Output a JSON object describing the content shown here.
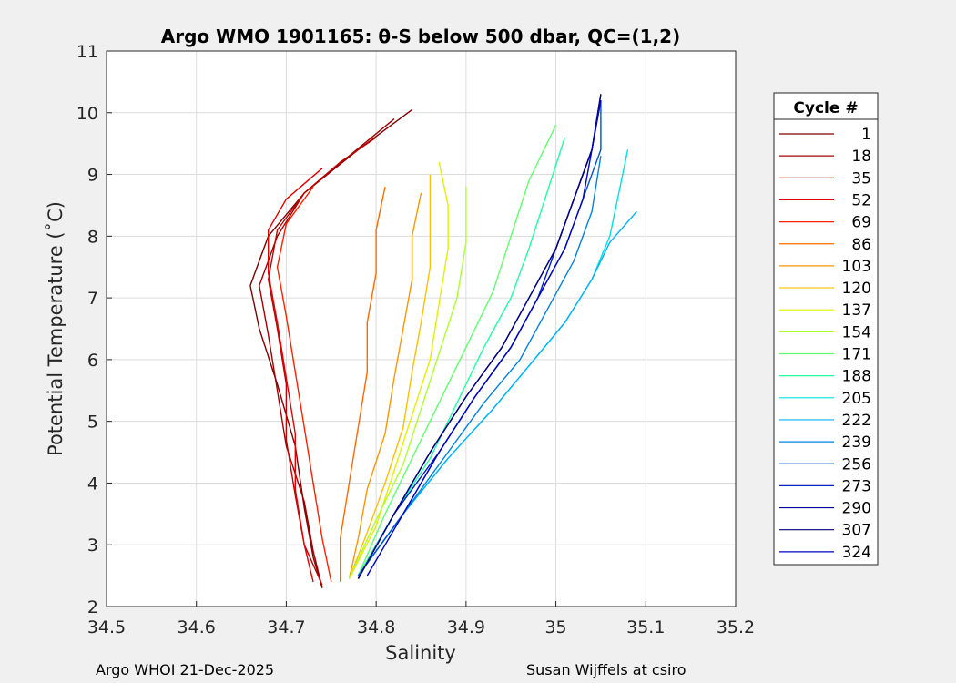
{
  "chart_data": {
    "type": "line",
    "title": "Argo WMO 1901165: θ-S below 500 dbar,  QC=(1,2)",
    "xlabel": "Salinity",
    "ylabel": "Potential Temperature (˚C)",
    "xlim": [
      34.5,
      35.2
    ],
    "ylim": [
      2,
      11
    ],
    "xticks": [
      "34.5",
      "34.6",
      "34.7",
      "34.8",
      "34.9",
      "35",
      "35.1",
      "35.2"
    ],
    "yticks": [
      "2",
      "3",
      "4",
      "5",
      "6",
      "7",
      "8",
      "9",
      "10",
      "11"
    ],
    "grid": true,
    "legend_title": "Cycle #",
    "legend_position": "outside-right",
    "series": [
      {
        "name": "1",
        "color": "#7f0000",
        "x": [
          34.74,
          34.73,
          34.72,
          34.71,
          34.69,
          34.67,
          34.66,
          34.68,
          34.72,
          34.78,
          34.84
        ],
        "y": [
          2.3,
          2.8,
          3.6,
          4.6,
          5.6,
          6.5,
          7.2,
          8.0,
          8.7,
          9.4,
          10.05
        ]
      },
      {
        "name": "18",
        "color": "#a00000",
        "x": [
          34.74,
          34.73,
          34.72,
          34.7,
          34.69,
          34.68,
          34.67,
          34.69,
          34.72,
          34.77,
          34.82
        ],
        "y": [
          2.3,
          2.9,
          3.7,
          4.6,
          5.5,
          6.4,
          7.2,
          8.0,
          8.7,
          9.3,
          9.9
        ]
      },
      {
        "name": "35",
        "color": "#c00000",
        "x": [
          34.74,
          34.72,
          34.71,
          34.7,
          34.7,
          34.69,
          34.68,
          34.69,
          34.72,
          34.76,
          34.8
        ],
        "y": [
          2.35,
          3.0,
          3.8,
          4.7,
          5.6,
          6.5,
          7.3,
          8.1,
          8.7,
          9.2,
          9.6
        ]
      },
      {
        "name": "52",
        "color": "#e00000",
        "x": [
          34.73,
          34.72,
          34.71,
          34.71,
          34.7,
          34.69,
          34.68,
          34.68,
          34.7,
          34.74
        ],
        "y": [
          2.4,
          3.0,
          3.9,
          4.8,
          5.7,
          6.6,
          7.4,
          8.1,
          8.6,
          9.1
        ]
      },
      {
        "name": "69",
        "color": "#ff2000",
        "x": [
          34.75,
          34.74,
          34.73,
          34.72,
          34.71,
          34.7,
          34.69,
          34.7,
          34.73
        ],
        "y": [
          2.4,
          3.1,
          4.0,
          4.9,
          5.8,
          6.7,
          7.5,
          8.2,
          8.8
        ]
      },
      {
        "name": "86",
        "color": "#ff6a00",
        "x": [
          34.76,
          34.76,
          34.77,
          34.78,
          34.79,
          34.79,
          34.8,
          34.8,
          34.81
        ],
        "y": [
          2.4,
          3.1,
          4.0,
          4.9,
          5.8,
          6.6,
          7.4,
          8.1,
          8.8
        ]
      },
      {
        "name": "103",
        "color": "#ff9500",
        "x": [
          34.77,
          34.78,
          34.79,
          34.81,
          34.82,
          34.83,
          34.84,
          34.84,
          34.85
        ],
        "y": [
          2.45,
          3.1,
          3.9,
          4.8,
          5.7,
          6.5,
          7.3,
          8.0,
          8.7
        ]
      },
      {
        "name": "120",
        "color": "#ffc000",
        "x": [
          34.77,
          34.79,
          34.81,
          34.83,
          34.84,
          34.85,
          34.86,
          34.86,
          34.86
        ],
        "y": [
          2.45,
          3.2,
          4.0,
          4.9,
          5.8,
          6.6,
          7.5,
          8.3,
          9.0
        ]
      },
      {
        "name": "137",
        "color": "#e5f000",
        "x": [
          34.77,
          34.8,
          34.82,
          34.84,
          34.86,
          34.87,
          34.88,
          34.88,
          34.87
        ],
        "y": [
          2.45,
          3.3,
          4.2,
          5.1,
          6.0,
          6.9,
          7.8,
          8.5,
          9.2
        ]
      },
      {
        "name": "154",
        "color": "#b0ff30",
        "x": [
          34.77,
          34.8,
          34.83,
          34.85,
          34.87,
          34.89,
          34.9,
          34.9
        ],
        "y": [
          2.45,
          3.4,
          4.3,
          5.2,
          6.1,
          7.0,
          7.9,
          8.8
        ]
      },
      {
        "name": "171",
        "color": "#60ff70",
        "x": [
          34.78,
          34.81,
          34.84,
          34.87,
          34.9,
          34.93,
          34.95,
          34.97,
          35.0
        ],
        "y": [
          2.5,
          3.5,
          4.4,
          5.3,
          6.2,
          7.1,
          8.0,
          8.9,
          9.8
        ]
      },
      {
        "name": "188",
        "color": "#20ffa0",
        "x": [
          34.78,
          34.82,
          34.86,
          34.89,
          34.92,
          34.95,
          34.97,
          34.99,
          35.01
        ],
        "y": [
          2.5,
          3.5,
          4.4,
          5.3,
          6.2,
          7.0,
          7.8,
          8.7,
          9.6
        ]
      },
      {
        "name": "205",
        "color": "#00e0e0",
        "x": [
          34.78,
          34.83,
          34.88,
          34.93,
          34.97,
          35.01,
          35.04,
          35.06,
          35.07,
          35.08
        ],
        "y": [
          2.5,
          3.5,
          4.4,
          5.2,
          5.9,
          6.6,
          7.3,
          8.0,
          8.7,
          9.4
        ]
      },
      {
        "name": "222",
        "color": "#00b0ff",
        "x": [
          34.78,
          34.83,
          34.88,
          34.93,
          34.97,
          35.01,
          35.04,
          35.06,
          35.09
        ],
        "y": [
          2.5,
          3.5,
          4.4,
          5.2,
          5.9,
          6.6,
          7.3,
          7.9,
          8.4
        ]
      },
      {
        "name": "239",
        "color": "#0080e0",
        "x": [
          34.78,
          34.83,
          34.88,
          34.92,
          34.96,
          34.99,
          35.02,
          35.04,
          35.05
        ],
        "y": [
          2.5,
          3.5,
          4.5,
          5.3,
          6.0,
          6.8,
          7.6,
          8.4,
          9.3
        ]
      },
      {
        "name": "256",
        "color": "#0050d0",
        "x": [
          34.78,
          34.83,
          34.87,
          34.91,
          34.95,
          34.98,
          35.01,
          35.03,
          35.05,
          35.05
        ],
        "y": [
          2.5,
          3.5,
          4.5,
          5.4,
          6.2,
          7.0,
          7.8,
          8.6,
          9.4,
          10.2
        ]
      },
      {
        "name": "273",
        "color": "#0020c0",
        "x": [
          34.78,
          34.82,
          34.87,
          34.91,
          34.95,
          34.98,
          35.0,
          35.02,
          35.04,
          35.05
        ],
        "y": [
          2.45,
          3.5,
          4.5,
          5.4,
          6.2,
          7.0,
          7.8,
          8.6,
          9.4,
          10.2
        ]
      },
      {
        "name": "290",
        "color": "#0000a0",
        "x": [
          34.78,
          34.82,
          34.86,
          34.9,
          34.94,
          34.97,
          35.0,
          35.02,
          35.04,
          35.05
        ],
        "y": [
          2.45,
          3.5,
          4.5,
          5.4,
          6.2,
          7.0,
          7.8,
          8.6,
          9.4,
          10.3
        ]
      },
      {
        "name": "307",
        "color": "#000080",
        "x": [
          34.78,
          34.82,
          34.86,
          34.9,
          34.94,
          34.97,
          35.0,
          35.02,
          35.04,
          35.05
        ],
        "y": [
          2.45,
          3.5,
          4.5,
          5.4,
          6.2,
          7.0,
          7.8,
          8.6,
          9.4,
          10.3
        ]
      },
      {
        "name": "324",
        "color": "#0000c0",
        "x": [
          34.79,
          34.83,
          34.87,
          34.91,
          34.95,
          34.98,
          35.01,
          35.03,
          35.04,
          35.05
        ],
        "y": [
          2.5,
          3.5,
          4.5,
          5.4,
          6.2,
          7.0,
          7.8,
          8.6,
          9.4,
          10.2
        ]
      }
    ]
  },
  "footer": {
    "left": "Argo WHOI 21-Dec-2025",
    "right": "Susan Wijffels at csiro"
  }
}
